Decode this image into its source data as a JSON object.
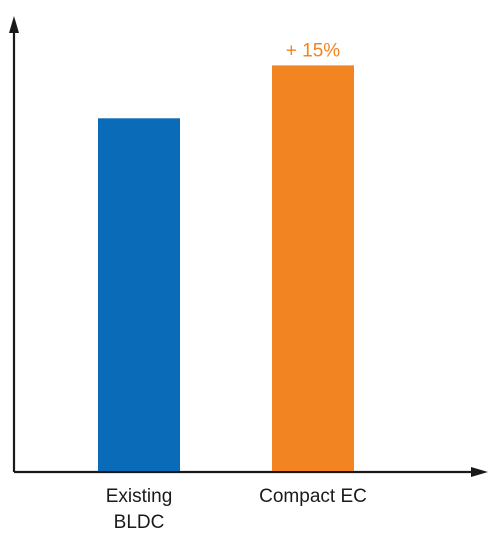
{
  "chart_data": {
    "type": "bar",
    "categories": [
      [
        "Existing",
        "BLDC"
      ],
      [
        "Compact EC"
      ]
    ],
    "values": [
      100,
      115
    ],
    "colors": [
      "#0a6bb8",
      "#f28422"
    ],
    "data_labels": [
      "",
      "+ 15%"
    ],
    "data_label_colors": [
      "#0a6bb8",
      "#f28422"
    ],
    "axis_color": "#1a1a1a",
    "ylim": [
      0,
      129
    ],
    "grid": false,
    "title": "",
    "xlabel": "",
    "ylabel": ""
  }
}
